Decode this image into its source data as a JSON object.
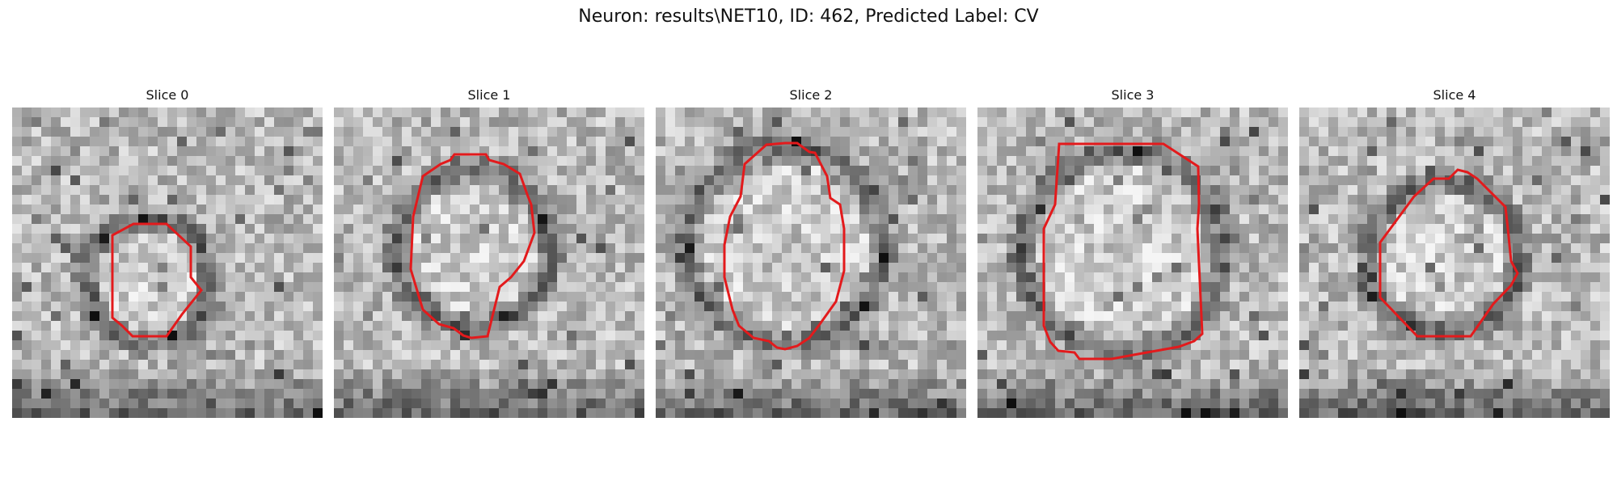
{
  "figure": {
    "title": "Neuron: results\\NET10, ID: 462, Predicted Label: CV",
    "outline_color": "#e31a1c",
    "colormap": "gray"
  },
  "slices": [
    {
      "label": "Slice 0",
      "shape": "small-polygon"
    },
    {
      "label": "Slice 1",
      "shape": "large-octagon"
    },
    {
      "label": "Slice 2",
      "shape": "large-polygon"
    },
    {
      "label": "Slice 3",
      "shape": "large-octagon"
    },
    {
      "label": "Slice 4",
      "shape": "octagon-with-notch"
    }
  ]
}
